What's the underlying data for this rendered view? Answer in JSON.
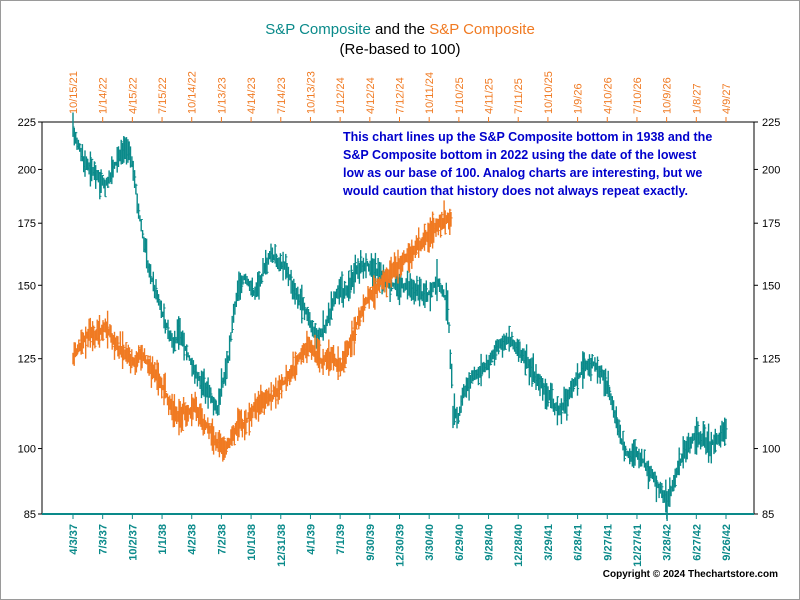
{
  "chart_data": {
    "type": "line",
    "title": {
      "part1": "S&P Composite",
      "part2": " and the ",
      "part3": "S&P Composite",
      "subtitle": "(Re-based to 100)"
    },
    "title_colors": {
      "part1": "#0a8a8a",
      "part3": "#f07a22"
    },
    "y_scale": "log",
    "ylim": [
      85,
      225
    ],
    "y_ticks": [
      85,
      100,
      125,
      150,
      175,
      200,
      225
    ],
    "x_bottom_labels": [
      "4/3/37",
      "7/3/37",
      "10/2/37",
      "1/1/38",
      "4/2/38",
      "7/2/38",
      "10/1/38",
      "12/31/38",
      "4/1/39",
      "7/1/39",
      "9/30/39",
      "12/30/39",
      "3/30/40",
      "6/29/40",
      "9/28/40",
      "12/28/40",
      "3/29/41",
      "6/28/41",
      "9/27/41",
      "12/27/41",
      "3/28/42",
      "6/27/42",
      "9/26/42"
    ],
    "x_top_labels": [
      "10/15/21",
      "1/14/22",
      "4/15/22",
      "7/15/22",
      "10/14/22",
      "1/13/23",
      "4/14/23",
      "7/14/23",
      "10/13/23",
      "1/12/24",
      "4/12/24",
      "7/12/24",
      "10/11/24",
      "1/10/25",
      "4/11/25",
      "7/11/25",
      "10/10/25",
      "1/9/26",
      "4/10/26",
      "7/10/26",
      "10/9/26",
      "1/8/27",
      "4/9/27"
    ],
    "series": [
      {
        "name": "S&P Composite",
        "axis": "bottom dates (1937-1942)",
        "color": "#0a8a8a",
        "values": [
          220,
          212,
          205,
          201,
          198,
          195,
          192,
          197,
          203,
          208,
          210,
          204,
          185,
          170,
          158,
          150,
          145,
          138,
          133,
          130,
          134,
          128,
          124,
          120,
          118,
          116,
          113,
          110,
          118,
          125,
          140,
          150,
          153,
          150,
          147,
          152,
          158,
          162,
          160,
          158,
          156,
          150,
          146,
          143,
          138,
          134,
          132,
          135,
          140,
          146,
          148,
          147,
          152,
          155,
          157,
          158,
          156,
          155,
          152,
          151,
          150,
          150,
          150,
          149,
          148,
          147,
          146,
          148,
          152,
          148,
          143,
          110,
          108,
          115,
          118,
          120,
          121,
          122,
          125,
          128,
          130,
          131,
          130,
          128,
          126,
          124,
          121,
          118,
          116,
          114,
          111,
          110,
          112,
          116,
          118,
          121,
          123,
          124,
          122,
          120,
          116,
          110,
          104,
          100,
          98,
          99,
          98,
          96,
          94,
          92,
          90,
          88,
          91,
          95,
          99,
          101,
          103,
          103,
          102,
          101,
          102,
          103,
          104
        ]
      },
      {
        "name": "S&P Composite",
        "axis": "top dates (2021-2024)",
        "color": "#f07a22",
        "values": [
          126,
          128,
          130,
          132,
          133,
          132,
          134,
          136,
          133,
          130,
          128,
          127,
          126,
          124,
          125,
          126,
          124,
          122,
          120,
          118,
          115,
          112,
          110,
          108,
          110,
          109,
          111,
          110,
          107,
          106,
          104,
          102,
          101,
          100,
          102,
          104,
          107,
          106,
          108,
          110,
          112,
          113,
          114,
          113,
          115,
          117,
          118,
          120,
          122,
          125,
          127,
          129,
          128,
          126,
          124,
          125,
          126,
          124,
          122,
          126,
          130,
          133,
          138,
          142,
          146,
          148,
          150,
          151,
          153,
          155,
          157,
          158,
          160,
          161,
          163,
          166,
          168,
          170,
          172,
          174,
          175,
          177,
          176
        ]
      }
    ],
    "annotation": [
      "This chart lines up the S&P Composite bottom in 1938 and the",
      "S&P Composite bottom in 2022 using the date of the lowest",
      "low as our base of 100.  Analog charts are interesting, but we",
      "would caution that history does not always repeat exactly."
    ],
    "copyright": "Copyright © 2024 Thechartstore.com",
    "grid": false
  }
}
